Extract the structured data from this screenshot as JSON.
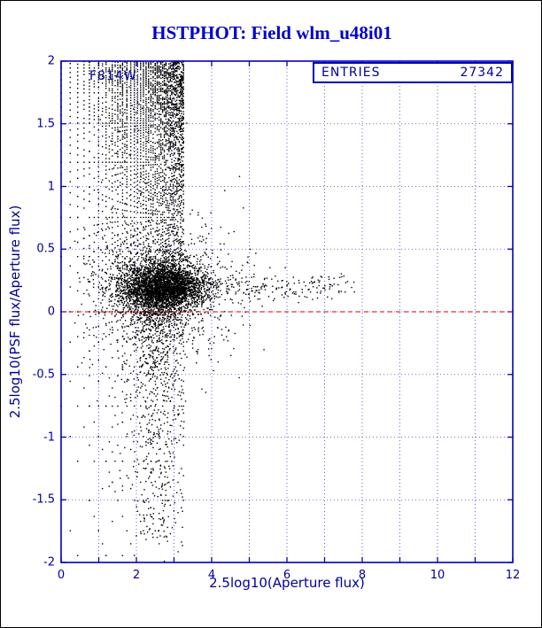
{
  "chart_data": {
    "type": "scatter",
    "title": "HSTPHOT: Field wlm_u48i01",
    "xlabel": "2.5log10(Aperture flux)",
    "ylabel": "2.5log10(PSF flux/Aperture flux)",
    "xlim": [
      0,
      12
    ],
    "ylim": [
      -2,
      2
    ],
    "x_tick_values": [
      0,
      2,
      4,
      6,
      8,
      10,
      12
    ],
    "x_tick_labels": [
      "0",
      "2",
      "4",
      "6",
      "8",
      "10",
      "12"
    ],
    "x_grid_step": 1,
    "y_tick_values": [
      2,
      1.5,
      1,
      0.5,
      0,
      -0.5,
      -1,
      -1.5,
      -2
    ],
    "y_tick_labels": [
      "2",
      "1.5",
      "1",
      "0.5",
      "0",
      "-0.5",
      "-1",
      "-1.5",
      "-2"
    ],
    "y_grid_step": 0.5,
    "grid": true,
    "n_points": 27342,
    "annotations": {
      "filter": "F814W",
      "entries_label": "ENTRIES",
      "entries_value": "27342"
    },
    "reference_line": {
      "y": 0,
      "color": "#cc0000",
      "dash": [
        5,
        4
      ]
    },
    "colors": {
      "points": "#000000",
      "frame": "#0000bb",
      "grid": "#3344cc",
      "text": "#000099",
      "title": "#0000cc"
    },
    "summary": "PSF-to-aperture flux ratio vs aperture flux for 27342 detections in field wlm_u48i01 (F814W). Faint sources form a quantization fan of discrete curves radiating between y=-2 and y=2 for x<3, converging into a dense stellar locus near y~0.2 spanning x~1.5-4.5; a sparse bright-star band continues along y~0.2 out to x~7.8; a loose tail extends below the locus to y~-1.8; red dashed reference line at y=0.",
    "point_generation": {
      "seed": 20250101,
      "fan_layers": [
        {
          "q": 0.5,
          "n_min": 2,
          "n_max": 40,
          "keep_n": 12
        },
        {
          "q": 0.25,
          "n_min": 4,
          "n_max": 20,
          "keep_n": 6
        }
      ],
      "cloud": {
        "n": 3200,
        "cx": 2.7,
        "cy": 0.19,
        "sx": 0.55,
        "sy": 0.1
      },
      "halo": {
        "n": 900,
        "cx": 2.6,
        "cy": 0.15,
        "sx": 1.1,
        "sy": 0.3
      },
      "band": {
        "n": 330,
        "x_min": 3.0,
        "x_span": 4.8,
        "x_pow": 1.6,
        "cy": 0.2,
        "sy": 0.055
      },
      "tail": {
        "n": 480,
        "cx": 2.45,
        "sx": 0.33,
        "depth": 1.8,
        "pow": 1.8
      },
      "upper": {
        "n": 160,
        "cx": 2.2,
        "sx": 0.5,
        "y_base": 0.4,
        "y_span": 1.4,
        "y_pow": 1.5
      }
    }
  }
}
